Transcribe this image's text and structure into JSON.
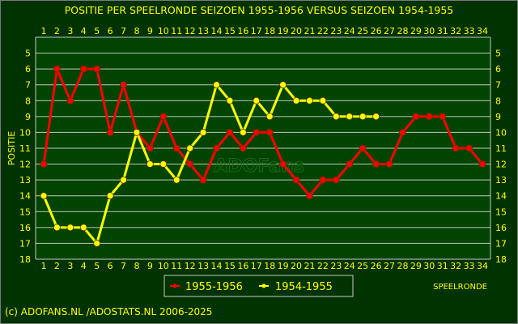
{
  "title": "POSITIE PER SPEELRONDE SEIZOEN 1955-1956 VERSUS SEIZOEN 1954-1955",
  "footer": "(c) ADOFANS.NL /ADOSTATS.NL 2006-2025",
  "watermark": "ADOFans",
  "colors": {
    "background": "#003300",
    "text": "#ffff00",
    "grid": "#c8c8c8",
    "series_1955": "#ff0000",
    "series_1954": "#ffff00"
  },
  "chart_data": {
    "type": "line",
    "ylabel": "POSITIE",
    "xlabel": "SPEELRONDE",
    "x": [
      1,
      2,
      3,
      4,
      5,
      6,
      7,
      8,
      9,
      10,
      11,
      12,
      13,
      14,
      15,
      16,
      17,
      18,
      19,
      20,
      21,
      22,
      23,
      24,
      25,
      26,
      27,
      28,
      29,
      30,
      31,
      32,
      33,
      34
    ],
    "xlim": [
      1,
      34
    ],
    "ylim": [
      18,
      5
    ],
    "y_reversed": true,
    "ytick_labels": [
      "5",
      "6",
      "7",
      "8",
      "9",
      "10",
      "11",
      "12",
      "13",
      "14",
      "15",
      "16",
      "17",
      "18"
    ],
    "legend_placement": "bottom",
    "grid": true,
    "series": [
      {
        "name": "1955-1956",
        "values": [
          12,
          6,
          8,
          6,
          6,
          10,
          7,
          10,
          11,
          9,
          11,
          12,
          13,
          11,
          10,
          11,
          10,
          10,
          12,
          13,
          14,
          13,
          13,
          12,
          11,
          12,
          12,
          10,
          9,
          9,
          9,
          11,
          11,
          12
        ]
      },
      {
        "name": "1954-1955",
        "values": [
          14,
          16,
          16,
          16,
          17,
          14,
          13,
          10,
          12,
          12,
          13,
          11,
          10,
          7,
          8,
          10,
          8,
          9,
          7,
          8,
          8,
          8,
          9,
          9,
          9,
          9,
          null,
          null,
          null,
          null,
          null,
          null,
          null,
          null
        ]
      }
    ]
  }
}
